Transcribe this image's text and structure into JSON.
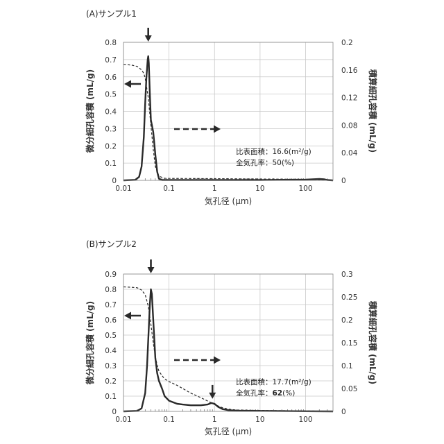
{
  "chart_data": [
    {
      "type": "line",
      "title": "(A)サンプル1",
      "xlabel": "気孔径 (μm)",
      "ylabel": "微分細孔容積 (mL/g)",
      "y2label": "積算細孔容積 (mL/g)",
      "xscale": "log",
      "xlim": [
        0.01,
        400
      ],
      "ylim": [
        0,
        0.8
      ],
      "y2lim": [
        0,
        0.2
      ],
      "x_ticks": [
        "0.01",
        "0.1",
        "1",
        "10",
        "100"
      ],
      "y_ticks": [
        "0",
        "0.1",
        "0.2",
        "0.3",
        "0.4",
        "0.5",
        "0.6",
        "0.7",
        "0.8"
      ],
      "y2_ticks": [
        "0",
        "0.04",
        "0.08",
        "0.12",
        "0.16",
        "0.2"
      ],
      "annotations": [
        "比表面積：16.6(m²/g)",
        "全気孔率：50(%)"
      ],
      "peak_marker_x": [
        0.035
      ],
      "series": [
        {
          "axis": "left",
          "style": "solid",
          "x": [
            0.01,
            0.018,
            0.022,
            0.025,
            0.028,
            0.03,
            0.032,
            0.034,
            0.035,
            0.036,
            0.038,
            0.04,
            0.045,
            0.05,
            0.055,
            0.06,
            0.07,
            0.1,
            1,
            10,
            100,
            200,
            260,
            300,
            400
          ],
          "y": [
            0,
            0.003,
            0.02,
            0.08,
            0.25,
            0.45,
            0.6,
            0.7,
            0.72,
            0.68,
            0.5,
            0.35,
            0.28,
            0.15,
            0.05,
            0.01,
            0.002,
            0.002,
            0.002,
            0.002,
            0.004,
            0.008,
            0.006,
            0.002,
            0
          ]
        },
        {
          "axis": "right",
          "style": "dashed",
          "x": [
            0.01,
            0.015,
            0.02,
            0.022,
            0.025,
            0.028,
            0.03,
            0.035,
            0.04,
            0.045,
            0.05,
            0.06,
            0.08,
            0.1,
            1,
            10,
            100,
            200,
            300,
            400
          ],
          "y": [
            0.168,
            0.167,
            0.165,
            0.163,
            0.16,
            0.155,
            0.148,
            0.12,
            0.08,
            0.045,
            0.02,
            0.006,
            0.003,
            0.0028,
            0.0025,
            0.002,
            0.0015,
            0.0008,
            0.0002,
            0
          ]
        }
      ]
    },
    {
      "type": "line",
      "title": "(B)サンプル2",
      "xlabel": "気孔径 (μm)",
      "ylabel": "微分細孔容積 (mL/g)",
      "y2label": "積算細孔容積 (mL/g)",
      "xscale": "log",
      "xlim": [
        0.01,
        400
      ],
      "ylim": [
        0,
        0.9
      ],
      "y2lim": [
        0,
        0.3
      ],
      "x_ticks": [
        "0.01",
        "0.1",
        "1",
        "10",
        "100"
      ],
      "y_ticks": [
        "0",
        "0.1",
        "0.2",
        "0.3",
        "0.4",
        "0.5",
        "0.6",
        "0.7",
        "0.8",
        "0.9"
      ],
      "y2_ticks": [
        "0",
        "0.05",
        "0.1",
        "0.15",
        "0.2",
        "0.25",
        "0.3"
      ],
      "annotations": [
        "比表面積：17.7(m²/g)",
        "全気孔率：",
        "62",
        "(%)"
      ],
      "peak_marker_x": [
        0.04,
        0.9
      ],
      "series": [
        {
          "axis": "left",
          "style": "solid",
          "x": [
            0.01,
            0.02,
            0.025,
            0.03,
            0.033,
            0.036,
            0.038,
            0.04,
            0.042,
            0.045,
            0.05,
            0.055,
            0.06,
            0.07,
            0.08,
            0.1,
            0.15,
            0.2,
            0.3,
            0.5,
            0.7,
            0.85,
            1.0,
            1.2,
            1.5,
            2,
            3,
            10,
            100,
            400
          ],
          "y": [
            0,
            0.003,
            0.02,
            0.12,
            0.3,
            0.55,
            0.7,
            0.8,
            0.77,
            0.6,
            0.35,
            0.25,
            0.2,
            0.15,
            0.1,
            0.07,
            0.05,
            0.045,
            0.04,
            0.04,
            0.045,
            0.055,
            0.05,
            0.03,
            0.015,
            0.008,
            0.005,
            0.003,
            0.001,
            0
          ]
        },
        {
          "axis": "right",
          "style": "dashed",
          "x": [
            0.01,
            0.015,
            0.02,
            0.025,
            0.03,
            0.035,
            0.04,
            0.045,
            0.05,
            0.055,
            0.06,
            0.07,
            0.08,
            0.1,
            0.15,
            0.2,
            0.3,
            0.5,
            0.8,
            1.0,
            1.5,
            2,
            3,
            10,
            100,
            400
          ],
          "y": [
            0.272,
            0.271,
            0.27,
            0.265,
            0.255,
            0.23,
            0.19,
            0.15,
            0.12,
            0.1,
            0.088,
            0.078,
            0.071,
            0.065,
            0.057,
            0.05,
            0.04,
            0.03,
            0.02,
            0.015,
            0.008,
            0.005,
            0.003,
            0.002,
            0.001,
            0
          ]
        }
      ]
    }
  ]
}
